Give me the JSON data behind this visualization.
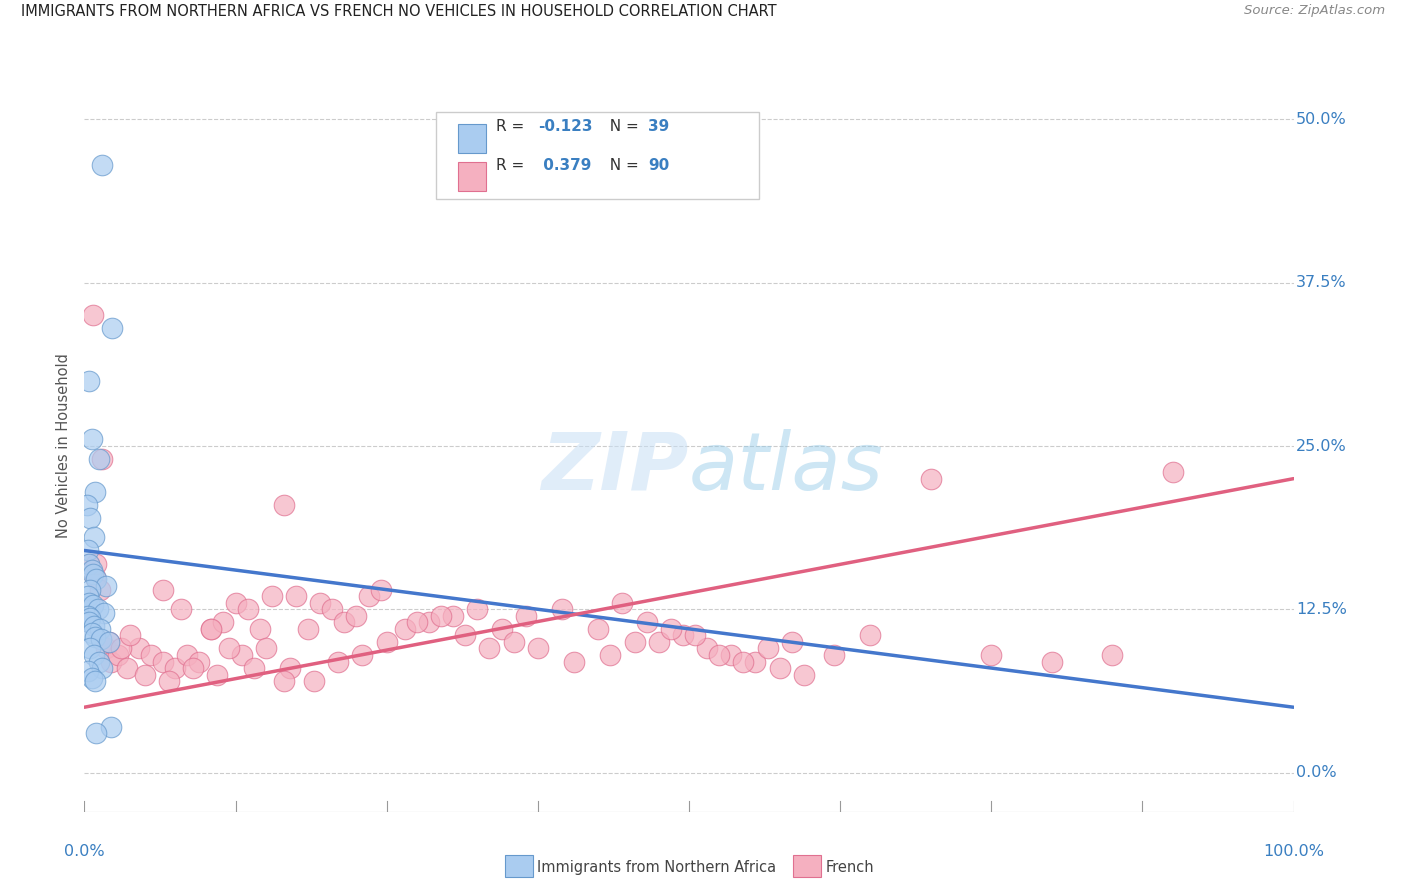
{
  "title": "IMMIGRANTS FROM NORTHERN AFRICA VS FRENCH NO VEHICLES IN HOUSEHOLD CORRELATION CHART",
  "source": "Source: ZipAtlas.com",
  "ylabel": "No Vehicles in Household",
  "ytick_vals": [
    0.0,
    12.5,
    25.0,
    37.5,
    50.0
  ],
  "xlim": [
    0.0,
    100.0
  ],
  "ylim": [
    -3.0,
    53.0
  ],
  "legend_label1": "Immigrants from Northern Africa",
  "legend_label2": "French",
  "R1": -0.123,
  "N1": 39,
  "R2": 0.379,
  "N2": 90,
  "blue_color": "#aaccf0",
  "pink_color": "#f5b0c0",
  "blue_edge_color": "#6699cc",
  "pink_edge_color": "#e07090",
  "blue_line_color": "#4477cc",
  "pink_line_color": "#e06080",
  "dash_line_color": "#aaccee",
  "watermark_color": "#ddeeff",
  "blue_line_start_y": 17.0,
  "blue_line_end_y": 5.0,
  "pink_line_start_y": 5.0,
  "pink_line_end_y": 22.5,
  "dash_start_x": 12.0,
  "dash_end_x": 45.0,
  "blue_scatter_x": [
    1.5,
    2.3,
    0.4,
    0.6,
    1.2,
    0.9,
    0.2,
    0.5,
    0.8,
    0.3,
    0.4,
    0.6,
    0.7,
    1.0,
    1.8,
    0.5,
    0.3,
    0.4,
    0.7,
    1.1,
    1.6,
    0.3,
    0.5,
    0.4,
    0.8,
    1.3,
    0.6,
    0.9,
    1.4,
    2.0,
    0.5,
    0.8,
    1.2,
    1.5,
    0.3,
    0.6,
    0.9,
    2.2,
    1.0
  ],
  "blue_scatter_y": [
    46.5,
    34.0,
    30.0,
    25.5,
    24.0,
    21.5,
    20.5,
    19.5,
    18.0,
    17.0,
    16.0,
    15.5,
    15.2,
    14.8,
    14.3,
    14.0,
    13.5,
    13.0,
    12.8,
    12.5,
    12.2,
    12.0,
    11.8,
    11.5,
    11.2,
    11.0,
    10.7,
    10.4,
    10.2,
    10.0,
    9.5,
    9.0,
    8.5,
    8.0,
    7.8,
    7.2,
    7.0,
    3.5,
    3.0
  ],
  "pink_scatter_x": [
    0.4,
    0.9,
    1.3,
    1.8,
    2.2,
    2.8,
    3.5,
    4.5,
    5.5,
    6.5,
    7.5,
    8.5,
    9.5,
    10.5,
    11.5,
    12.5,
    13.5,
    14.5,
    15.5,
    16.5,
    17.5,
    18.5,
    19.5,
    20.5,
    21.5,
    22.5,
    23.5,
    24.5,
    26.5,
    28.5,
    30.5,
    32.5,
    34.5,
    36.5,
    39.5,
    42.5,
    44.5,
    46.5,
    47.5,
    49.5,
    51.5,
    53.5,
    55.5,
    57.5,
    59.5,
    1.0,
    2.0,
    3.0,
    5.0,
    7.0,
    9.0,
    11.0,
    13.0,
    15.0,
    17.0,
    19.0,
    21.0,
    23.0,
    25.0,
    27.5,
    29.5,
    31.5,
    33.5,
    35.5,
    37.5,
    40.5,
    43.5,
    45.5,
    48.5,
    50.5,
    52.5,
    54.5,
    56.5,
    58.5,
    62.0,
    65.0,
    70.0,
    75.0,
    80.0,
    85.0,
    90.0,
    0.7,
    1.5,
    3.8,
    6.5,
    8.0,
    10.5,
    12.0,
    14.0,
    16.5
  ],
  "pink_scatter_y": [
    16.0,
    15.0,
    14.0,
    9.5,
    8.5,
    9.0,
    8.0,
    9.5,
    9.0,
    8.5,
    8.0,
    9.0,
    8.5,
    11.0,
    11.5,
    13.0,
    12.5,
    11.0,
    13.5,
    20.5,
    13.5,
    11.0,
    13.0,
    12.5,
    11.5,
    12.0,
    13.5,
    14.0,
    11.0,
    11.5,
    12.0,
    12.5,
    11.0,
    12.0,
    12.5,
    11.0,
    13.0,
    11.5,
    10.0,
    10.5,
    9.5,
    9.0,
    8.5,
    8.0,
    7.5,
    16.0,
    10.0,
    9.5,
    7.5,
    7.0,
    8.0,
    7.5,
    9.0,
    9.5,
    8.0,
    7.0,
    8.5,
    9.0,
    10.0,
    11.5,
    12.0,
    10.5,
    9.5,
    10.0,
    9.5,
    8.5,
    9.0,
    10.0,
    11.0,
    10.5,
    9.0,
    8.5,
    9.5,
    10.0,
    9.0,
    10.5,
    22.5,
    9.0,
    8.5,
    9.0,
    23.0,
    35.0,
    24.0,
    10.5,
    14.0,
    12.5,
    11.0,
    9.5,
    8.0,
    7.0
  ]
}
